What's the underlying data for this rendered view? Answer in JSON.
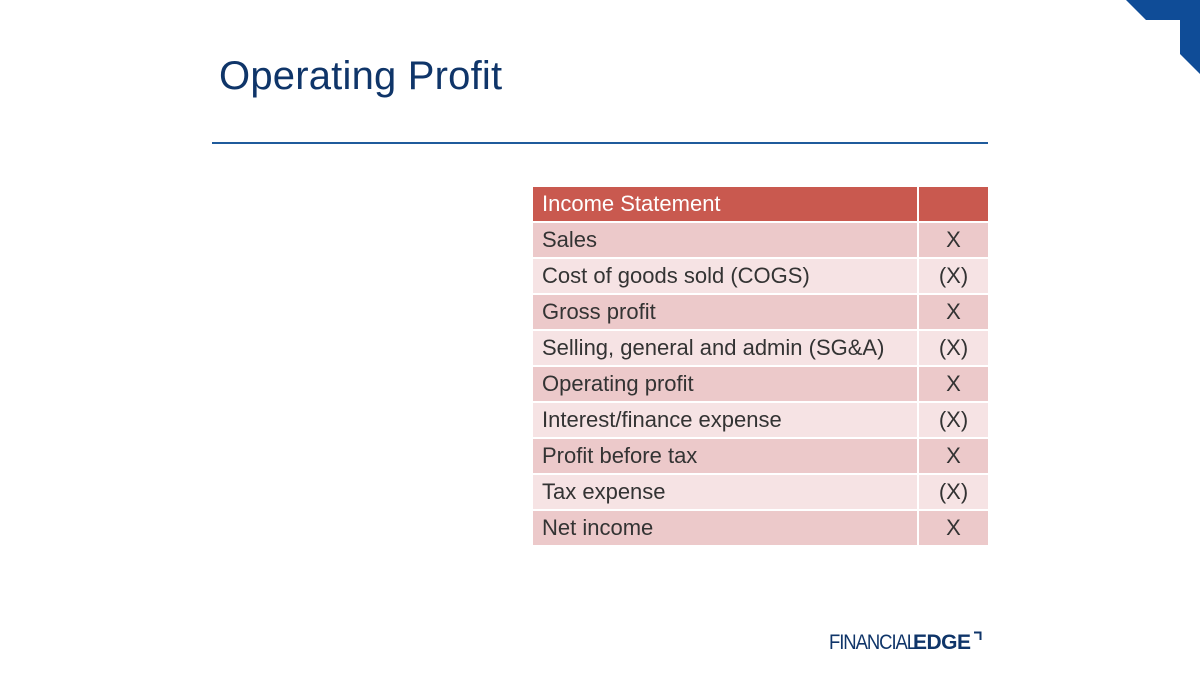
{
  "slide": {
    "title": "Operating Profit"
  },
  "table": {
    "header": {
      "label": "Income Statement",
      "value": ""
    },
    "rows": [
      {
        "label": "Sales",
        "value": "X"
      },
      {
        "label": "Cost of goods sold (COGS)",
        "value": "(X)"
      },
      {
        "label": "Gross profit",
        "value": "X"
      },
      {
        "label": "Selling, general and admin (SG&A)",
        "value": "(X)"
      },
      {
        "label": "Operating profit",
        "value": "X"
      },
      {
        "label": "Interest/finance expense",
        "value": "(X)"
      },
      {
        "label": "Profit before tax",
        "value": "X"
      },
      {
        "label": "Tax expense",
        "value": "(X)"
      },
      {
        "label": "Net income",
        "value": "X"
      }
    ]
  },
  "logo": {
    "word1": "FINANCIAL",
    "word2": "EDGE",
    "mark_icon": "corner-bracket-icon"
  },
  "colors": {
    "brand_navy": "#0f3569",
    "header_red": "#c9594f",
    "row_odd": "#ecc9ca",
    "row_even": "#f6e3e4",
    "rule_blue": "#1f5b9c"
  }
}
